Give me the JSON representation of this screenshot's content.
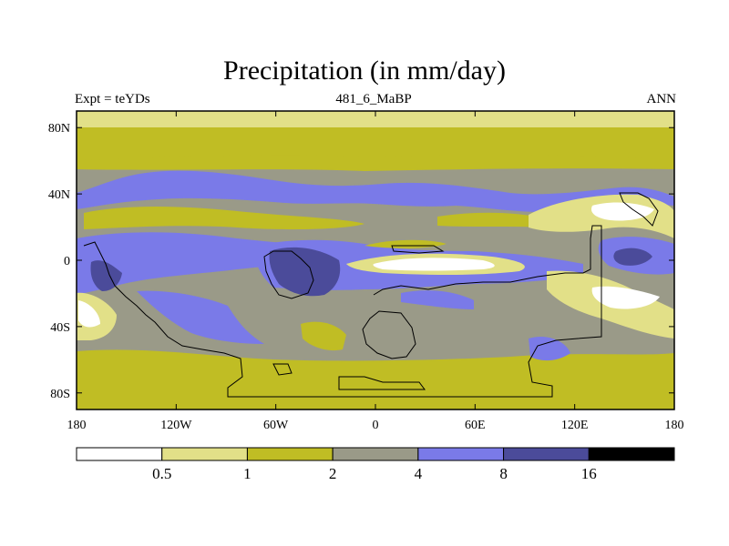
{
  "chart_data": {
    "type": "heatmap",
    "title": "Precipitation (in mm/day)",
    "subtitle_left": "Expt = teYDs",
    "subtitle_center": "481_6_MaBP",
    "subtitle_right": "ANN",
    "x_ticks": [
      "180",
      "120W",
      "60W",
      "0",
      "60E",
      "120E",
      "180"
    ],
    "x_values": [
      -180,
      -120,
      -60,
      0,
      60,
      120,
      180
    ],
    "y_ticks": [
      "80N",
      "40N",
      "0",
      "40S",
      "80S"
    ],
    "y_values": [
      80,
      40,
      0,
      -40,
      -80
    ],
    "xlim": [
      -180,
      180
    ],
    "ylim": [
      -90,
      90
    ],
    "colorbar": {
      "levels": [
        "0.5",
        "1",
        "2",
        "4",
        "8",
        "16"
      ],
      "colors": [
        "#ffffff",
        "#e2e088",
        "#c0bd24",
        "#9a9a88",
        "#7a7ae8",
        "#4b4b9a",
        "#000000"
      ]
    }
  }
}
